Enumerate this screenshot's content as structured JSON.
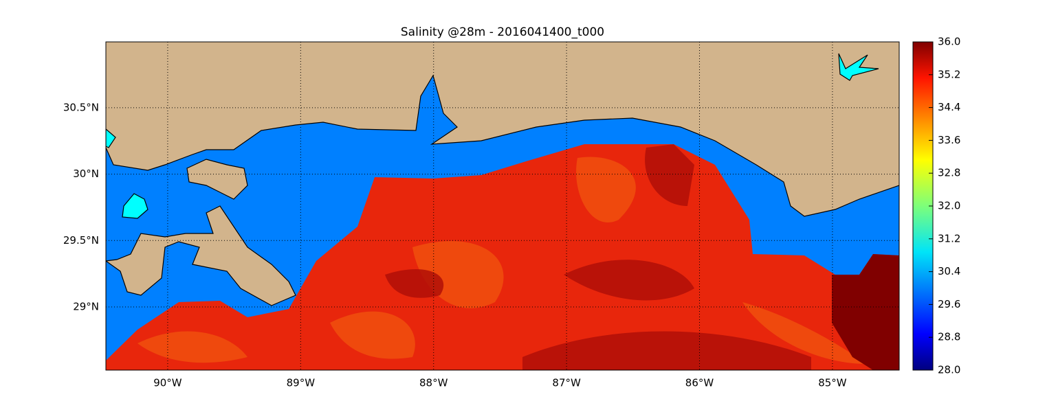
{
  "chart_data": {
    "type": "map",
    "title": "Salinity @28m - 2016041400_t000",
    "xlim": [
      -90.465,
      -84.498
    ],
    "ylim": [
      28.524,
      30.996
    ],
    "xticks": [
      {
        "value": -90,
        "label": "90°W"
      },
      {
        "value": -89,
        "label": "89°W"
      },
      {
        "value": -88,
        "label": "88°W"
      },
      {
        "value": -87,
        "label": "87°W"
      },
      {
        "value": -86,
        "label": "86°W"
      },
      {
        "value": -85,
        "label": "85°W"
      }
    ],
    "yticks": [
      {
        "value": 29,
        "label": "29°N"
      },
      {
        "value": 29.5,
        "label": "29.5°N"
      },
      {
        "value": 30,
        "label": "30°N"
      },
      {
        "value": 30.5,
        "label": "30.5°N"
      }
    ],
    "grid": true,
    "colorbar": {
      "colormap": "jet",
      "lim": [
        28,
        36
      ],
      "ticks": [
        {
          "value": 28,
          "label": "28.0"
        },
        {
          "value": 28.8,
          "label": "28.8"
        },
        {
          "value": 29.6,
          "label": "29.6"
        },
        {
          "value": 30.4,
          "label": "30.4"
        },
        {
          "value": 31.2,
          "label": "31.2"
        },
        {
          "value": 32,
          "label": "32.0"
        },
        {
          "value": 32.8,
          "label": "32.8"
        },
        {
          "value": 33.6,
          "label": "33.6"
        },
        {
          "value": 34.4,
          "label": "34.4"
        },
        {
          "value": 35.2,
          "label": "35.2"
        },
        {
          "value": 36,
          "label": "36.0"
        }
      ]
    }
  }
}
